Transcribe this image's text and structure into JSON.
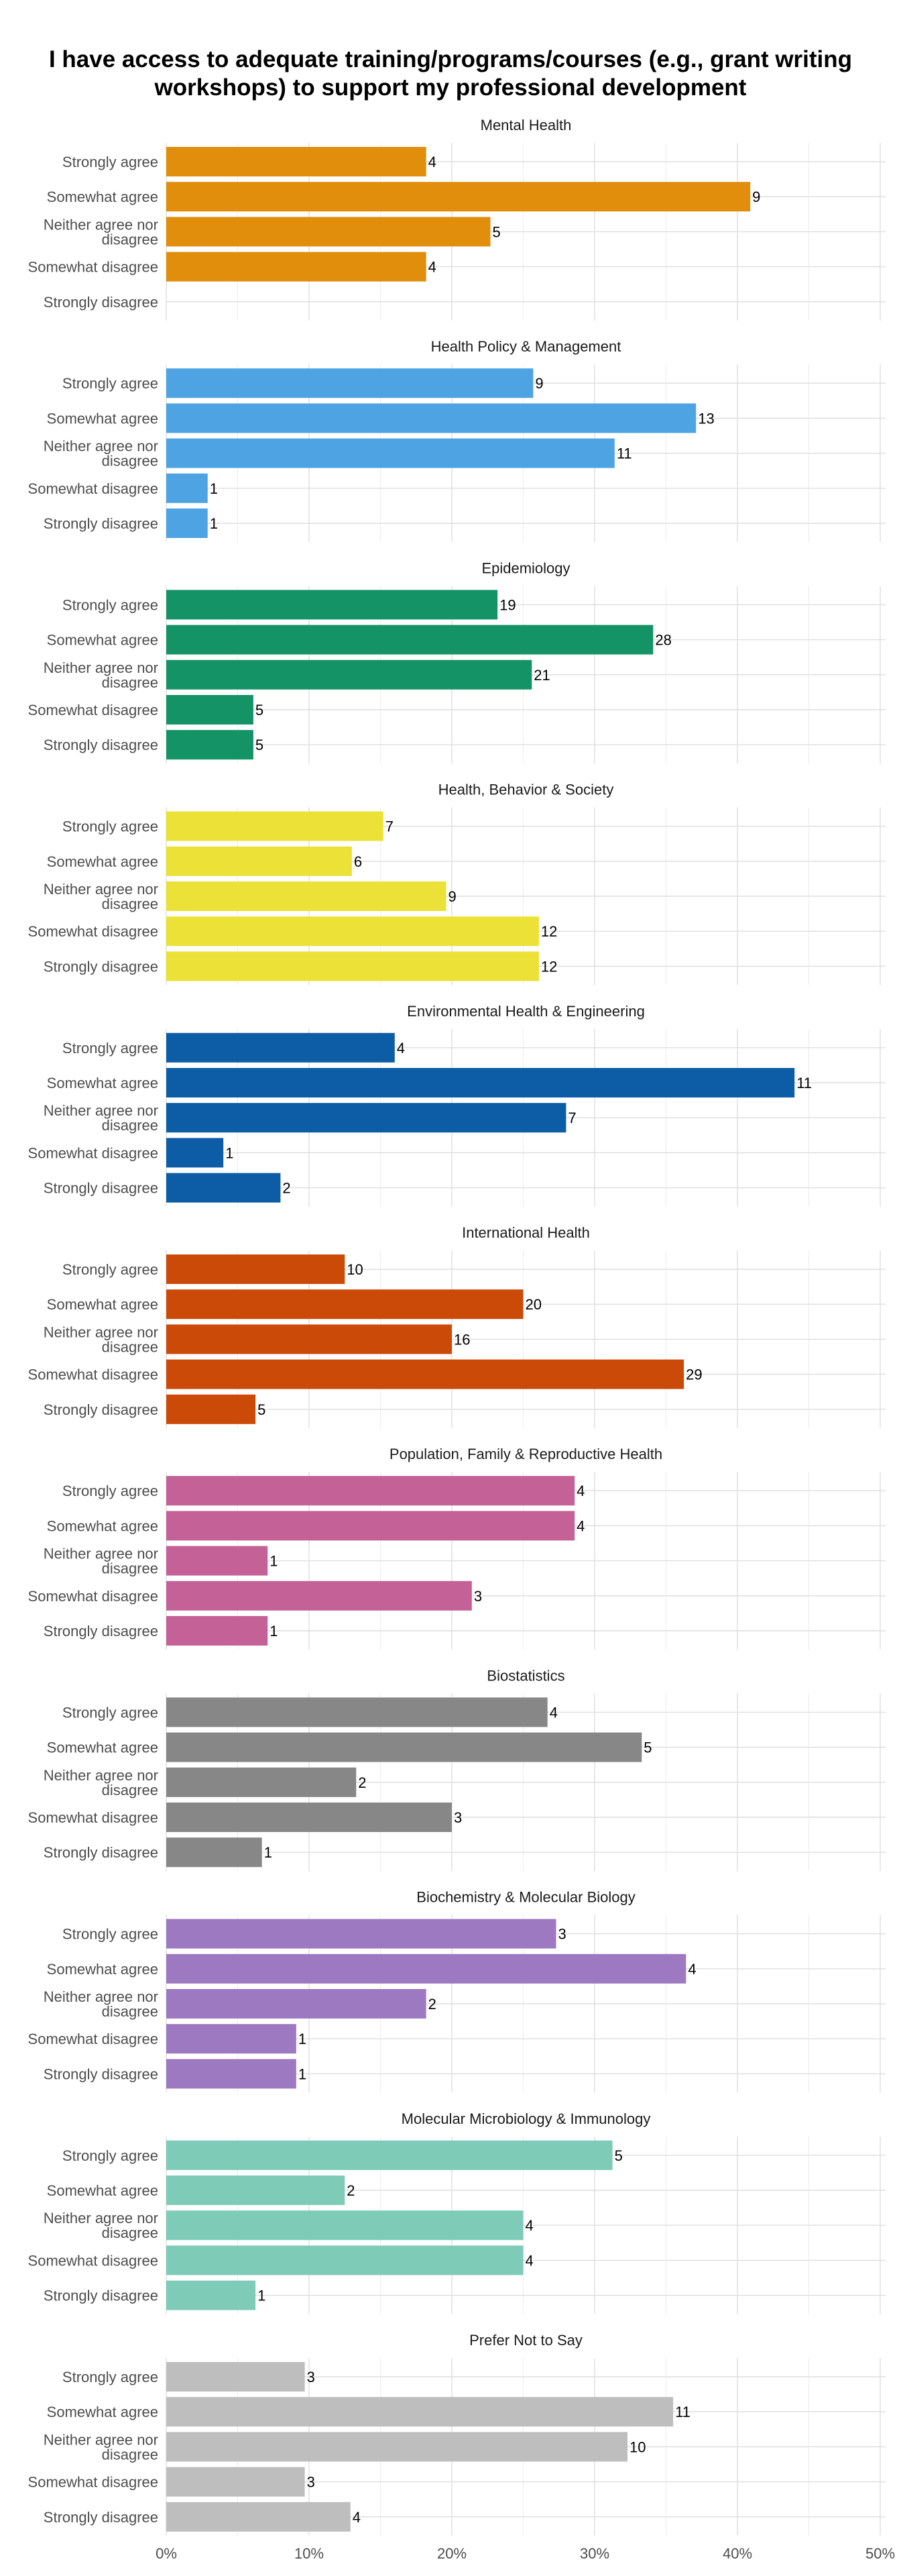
{
  "chart_data": {
    "type": "bar",
    "orientation": "horizontal",
    "title": "I have access to adequate training/programs/courses (e.g., grant writing workshops) to support my professional development",
    "categories": [
      "Strongly agree",
      "Somewhat agree",
      "Neither agree nor disagree",
      "Somewhat disagree",
      "Strongly disagree"
    ],
    "x_ticks": [
      "0%",
      "10%",
      "20%",
      "30%",
      "40%",
      "50%"
    ],
    "xlim": [
      0,
      50
    ],
    "grid": true,
    "legend": "none",
    "panels": [
      {
        "name": "Mental Health",
        "color": "#E08E0B",
        "counts": [
          4,
          9,
          5,
          4,
          null
        ],
        "percents": [
          18.2,
          40.9,
          22.7,
          18.2,
          0
        ]
      },
      {
        "name": "Health Policy & Management",
        "color": "#4EA4E2",
        "counts": [
          9,
          13,
          11,
          1,
          1
        ],
        "percents": [
          25.7,
          37.1,
          31.4,
          2.9,
          2.9
        ]
      },
      {
        "name": "Epidemiology",
        "color": "#149466",
        "counts": [
          19,
          28,
          21,
          5,
          5
        ],
        "percents": [
          23.2,
          34.1,
          25.6,
          6.1,
          6.1
        ]
      },
      {
        "name": "Health, Behavior & Society",
        "color": "#ECE237",
        "counts": [
          7,
          6,
          9,
          12,
          12
        ],
        "percents": [
          15.2,
          13.0,
          19.6,
          26.1,
          26.1
        ]
      },
      {
        "name": "Environmental Health & Engineering",
        "color": "#0C5DA5",
        "counts": [
          4,
          11,
          7,
          1,
          2
        ],
        "percents": [
          16.0,
          44.0,
          28.0,
          4.0,
          8.0
        ]
      },
      {
        "name": "International Health",
        "color": "#CB4A08",
        "counts": [
          10,
          20,
          16,
          29,
          5
        ],
        "percents": [
          12.5,
          25.0,
          20.0,
          36.25,
          6.25
        ]
      },
      {
        "name": "Population, Family & Reproductive Health",
        "color": "#C46197",
        "counts": [
          4,
          4,
          1,
          3,
          1
        ],
        "percents": [
          28.6,
          28.6,
          7.1,
          21.4,
          7.1
        ]
      },
      {
        "name": "Biostatistics",
        "color": "#878787",
        "counts": [
          4,
          5,
          2,
          3,
          1
        ],
        "percents": [
          26.7,
          33.3,
          13.3,
          20.0,
          6.7
        ]
      },
      {
        "name": "Biochemistry & Molecular Biology",
        "color": "#9D79C1",
        "counts": [
          3,
          4,
          2,
          1,
          1
        ],
        "percents": [
          27.3,
          36.4,
          18.2,
          9.1,
          9.1
        ]
      },
      {
        "name": "Molecular Microbiology & Immunology",
        "color": "#7ECBB8",
        "counts": [
          5,
          2,
          4,
          4,
          1
        ],
        "percents": [
          31.25,
          12.5,
          25.0,
          25.0,
          6.25
        ]
      },
      {
        "name": "Prefer Not to Say",
        "color": "#BEBEBE",
        "counts": [
          3,
          11,
          10,
          3,
          4
        ],
        "percents": [
          9.7,
          35.5,
          32.3,
          9.7,
          12.9
        ]
      }
    ]
  }
}
